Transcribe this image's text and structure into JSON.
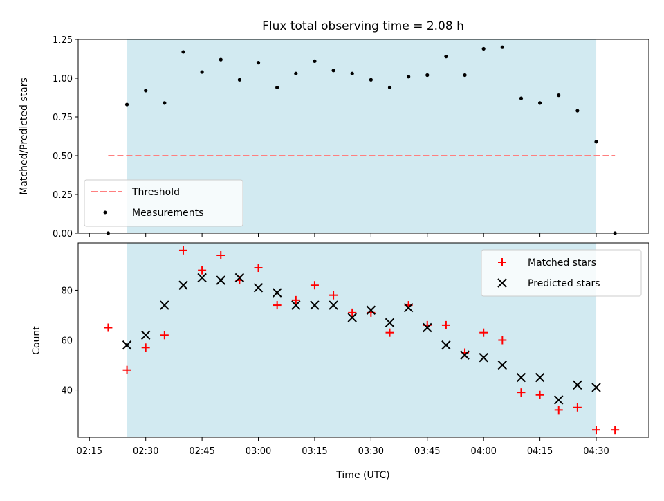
{
  "chart_data": [
    {
      "type": "scatter",
      "title": "Flux total observing time = 2.08 h",
      "xlabel": "",
      "ylabel": "Matched/Predicted stars",
      "ylim": [
        0.0,
        1.25
      ],
      "yticks": [
        "0.00",
        "0.25",
        "0.50",
        "0.75",
        "1.00",
        "1.25"
      ],
      "xlim": [
        "02:12",
        "04:44"
      ],
      "shaded_span": [
        "02:25",
        "04:30"
      ],
      "shade_color": "#add8e6",
      "grid": false,
      "legend_position": "lower-left",
      "threshold": {
        "name": "Threshold",
        "y": 0.5,
        "x": [
          "02:20",
          "04:35"
        ],
        "color": "#ff7f7f",
        "style": "dashed"
      },
      "series": [
        {
          "name": "Measurements",
          "color": "#000000",
          "marker": "dot",
          "x": [
            "02:20",
            "02:25",
            "02:30",
            "02:35",
            "02:40",
            "02:45",
            "02:50",
            "02:55",
            "03:00",
            "03:05",
            "03:10",
            "03:15",
            "03:20",
            "03:25",
            "03:30",
            "03:35",
            "03:40",
            "03:45",
            "03:50",
            "03:55",
            "04:00",
            "04:05",
            "04:10",
            "04:15",
            "04:20",
            "04:25",
            "04:30",
            "04:35"
          ],
          "y": [
            0.0,
            0.83,
            0.92,
            0.84,
            1.17,
            1.04,
            1.12,
            0.99,
            1.1,
            0.94,
            1.03,
            1.11,
            1.05,
            1.03,
            0.99,
            0.94,
            1.01,
            1.02,
            1.14,
            1.02,
            1.19,
            1.2,
            0.87,
            0.84,
            0.89,
            0.79,
            0.59,
            0.0
          ]
        }
      ]
    },
    {
      "type": "scatter",
      "title": "",
      "xlabel": "Time (UTC)",
      "ylabel": "Count",
      "ylim": [
        21,
        99
      ],
      "yticks": [
        "40",
        "60",
        "80"
      ],
      "xticks": [
        "02:15",
        "02:30",
        "02:45",
        "03:00",
        "03:15",
        "03:30",
        "03:45",
        "04:00",
        "04:15",
        "04:30"
      ],
      "shaded_span": [
        "02:25",
        "04:30"
      ],
      "shade_color": "#add8e6",
      "grid": false,
      "legend_position": "upper-right",
      "series": [
        {
          "name": "Matched stars",
          "color": "#ff0000",
          "marker": "plus",
          "x": [
            "02:20",
            "02:25",
            "02:30",
            "02:35",
            "02:40",
            "02:45",
            "02:50",
            "02:55",
            "03:00",
            "03:05",
            "03:10",
            "03:15",
            "03:20",
            "03:25",
            "03:30",
            "03:35",
            "03:40",
            "03:45",
            "03:50",
            "03:55",
            "04:00",
            "04:05",
            "04:10",
            "04:15",
            "04:20",
            "04:25",
            "04:30",
            "04:35"
          ],
          "y": [
            65,
            48,
            57,
            62,
            96,
            88,
            94,
            84,
            89,
            74,
            76,
            82,
            78,
            71,
            71,
            63,
            74,
            66,
            66,
            55,
            63,
            60,
            39,
            38,
            32,
            33,
            24,
            24
          ]
        },
        {
          "name": "Predicted stars",
          "color": "#000000",
          "marker": "x",
          "x": [
            "02:25",
            "02:30",
            "02:35",
            "02:40",
            "02:45",
            "02:50",
            "02:55",
            "03:00",
            "03:05",
            "03:10",
            "03:15",
            "03:20",
            "03:25",
            "03:30",
            "03:35",
            "03:40",
            "03:45",
            "03:50",
            "03:55",
            "04:00",
            "04:05",
            "04:10",
            "04:15",
            "04:20",
            "04:25",
            "04:30"
          ],
          "y": [
            58,
            62,
            74,
            82,
            85,
            84,
            85,
            81,
            79,
            74,
            74,
            74,
            69,
            72,
            67,
            73,
            65,
            58,
            54,
            53,
            50,
            45,
            45,
            36,
            42,
            41
          ]
        }
      ]
    }
  ]
}
